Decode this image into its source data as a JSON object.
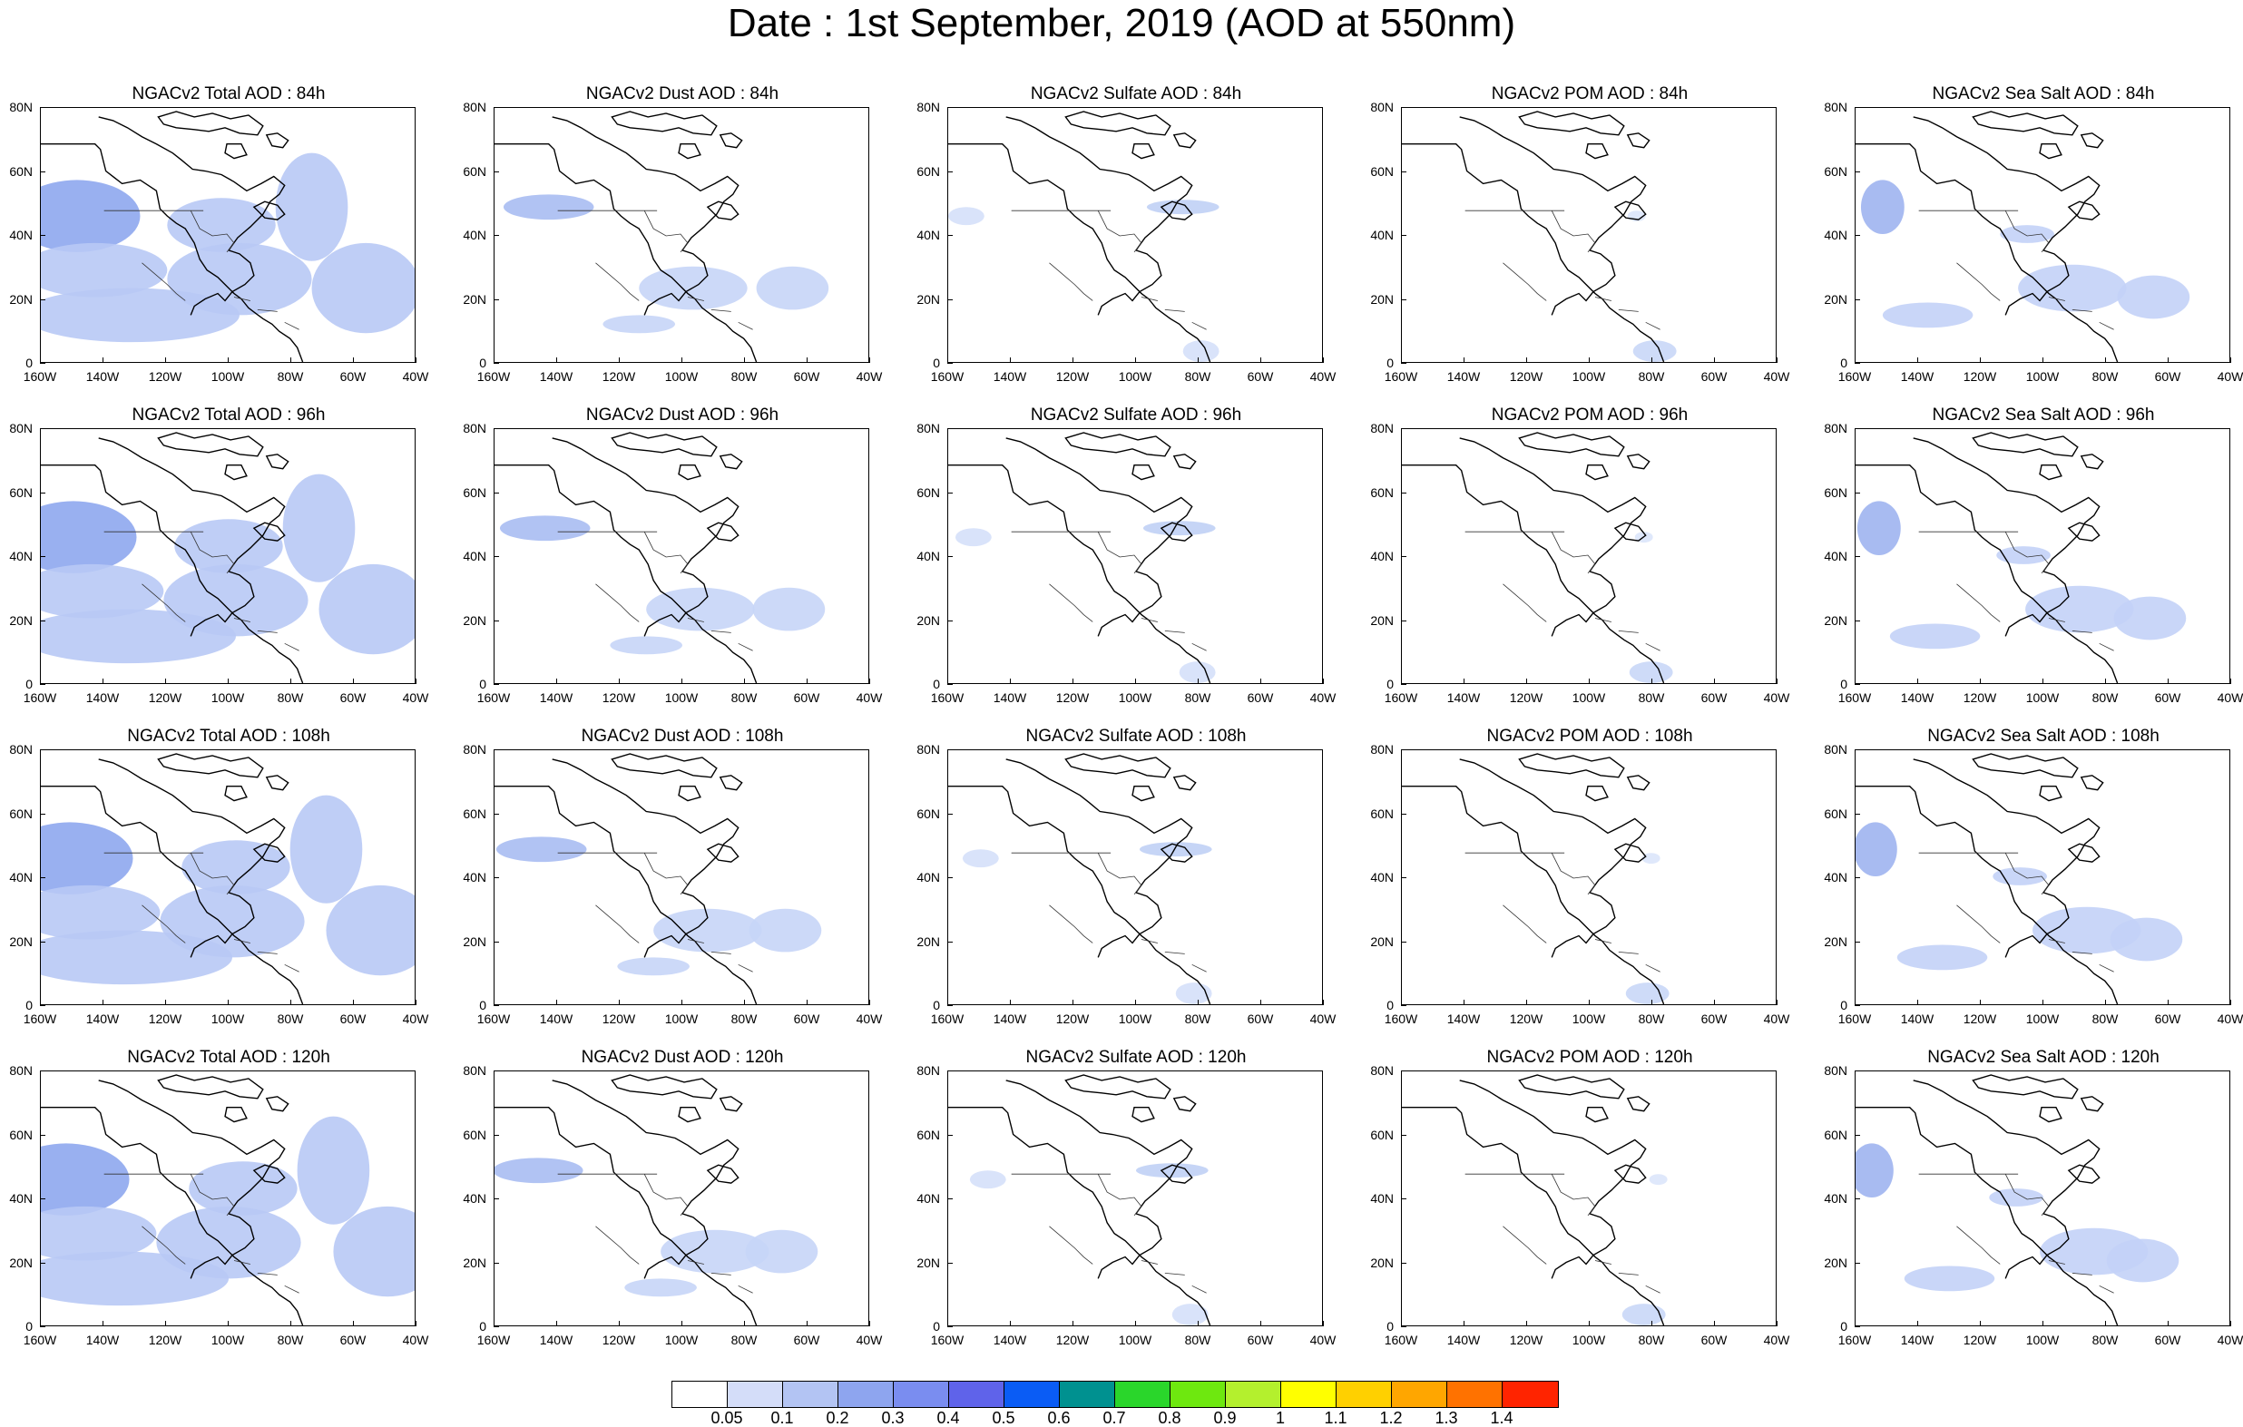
{
  "title": "Date : 1st September, 2019 (AOD at 550nm)",
  "columns": [
    {
      "key": "total",
      "fill": "#b8c9f5",
      "dense": "#8ea7ee"
    },
    {
      "key": "dust",
      "fill": "#c7d5f7",
      "dense": "#a9bdf2"
    },
    {
      "key": "sulfate",
      "fill": "#d5e0fa",
      "dense": "#c0d0f5"
    },
    {
      "key": "pom",
      "fill": "#dbe5fb",
      "dense": "#c9d7f7"
    },
    {
      "key": "seasalt",
      "fill": "#c3d2f7",
      "dense": "#9fb4f0"
    }
  ],
  "panels": [
    [
      "NGACv2 Total AOD : 84h",
      "NGACv2 Dust AOD : 84h",
      "NGACv2 Sulfate AOD : 84h",
      "NGACv2 POM AOD : 84h",
      "NGACv2 Sea Salt AOD : 84h"
    ],
    [
      "NGACv2 Total AOD : 96h",
      "NGACv2 Dust AOD : 96h",
      "NGACv2 Sulfate AOD : 96h",
      "NGACv2 POM AOD : 96h",
      "NGACv2 Sea Salt AOD : 96h"
    ],
    [
      "NGACv2 Total AOD : 108h",
      "NGACv2 Dust AOD : 108h",
      "NGACv2 Sulfate AOD : 108h",
      "NGACv2 POM AOD : 108h",
      "NGACv2 Sea Salt AOD : 108h"
    ],
    [
      "NGACv2 Total AOD : 120h",
      "NGACv2 Dust AOD : 120h",
      "NGACv2 Sulfate AOD : 120h",
      "NGACv2 POM AOD : 120h",
      "NGACv2 Sea Salt  AOD : 120h"
    ]
  ],
  "map": {
    "lat_labels": [
      "80N",
      "60N",
      "40N",
      "20N",
      "0"
    ],
    "lon_labels": [
      "160W",
      "140W",
      "120W",
      "100W",
      "80W",
      "60W",
      "40W"
    ]
  },
  "colorbar": {
    "colors": [
      "#ffffff",
      "#d4ddf9",
      "#b3c4f3",
      "#8ea5ef",
      "#7a8df0",
      "#5f63ea",
      "#0a5cf5",
      "#009190",
      "#2ad62b",
      "#6ee80f",
      "#b4f02d",
      "#ffff00",
      "#ffd000",
      "#ffa600",
      "#ff7200",
      "#ff2400"
    ],
    "labels": [
      "0.05",
      "0.1",
      "0.2",
      "0.3",
      "0.4",
      "0.5",
      "0.6",
      "0.7",
      "0.8",
      "0.9",
      "1",
      "1.1",
      "1.2",
      "1.3",
      "1.4"
    ]
  }
}
